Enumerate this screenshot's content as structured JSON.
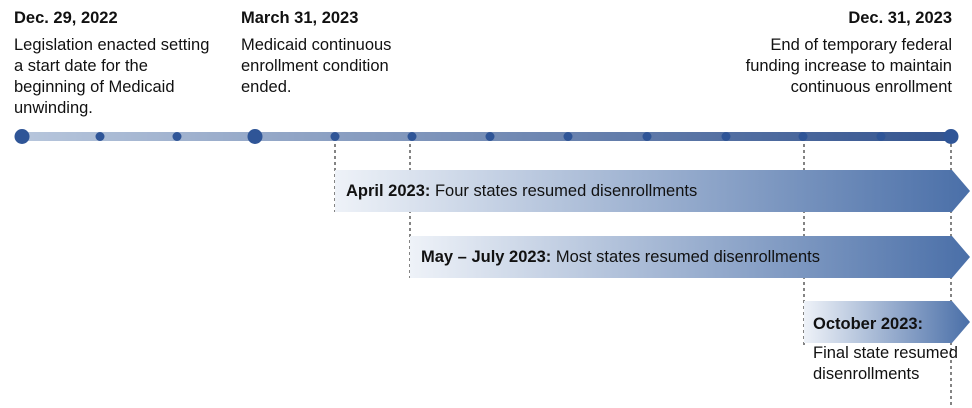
{
  "milestones": {
    "start": {
      "date": "Dec. 29, 2022",
      "text": "Legislation enacted setting a start date for the beginning of Medicaid unwinding."
    },
    "mid": {
      "date": "March 31, 2023",
      "text": "Medicaid continuous enrollment condition ended."
    },
    "end": {
      "date": "Dec. 31, 2023",
      "text": "End of temporary federal funding increase to maintain continuous enrollment"
    }
  },
  "phases": [
    {
      "period": "April 2023:",
      "text": "Four states resumed disenrollments"
    },
    {
      "period": "May – July 2023:",
      "text": "Most states resumed disenrollments"
    },
    {
      "period": "October 2023:",
      "text": "Final state resumed disenrollments"
    }
  ],
  "colors": {
    "timeline_light": "#b9c7dc",
    "timeline_dark": "#34548f",
    "node": "#2f5597",
    "arrow_start": "#e7ecf5",
    "arrow_end": "#4a6fa8"
  }
}
